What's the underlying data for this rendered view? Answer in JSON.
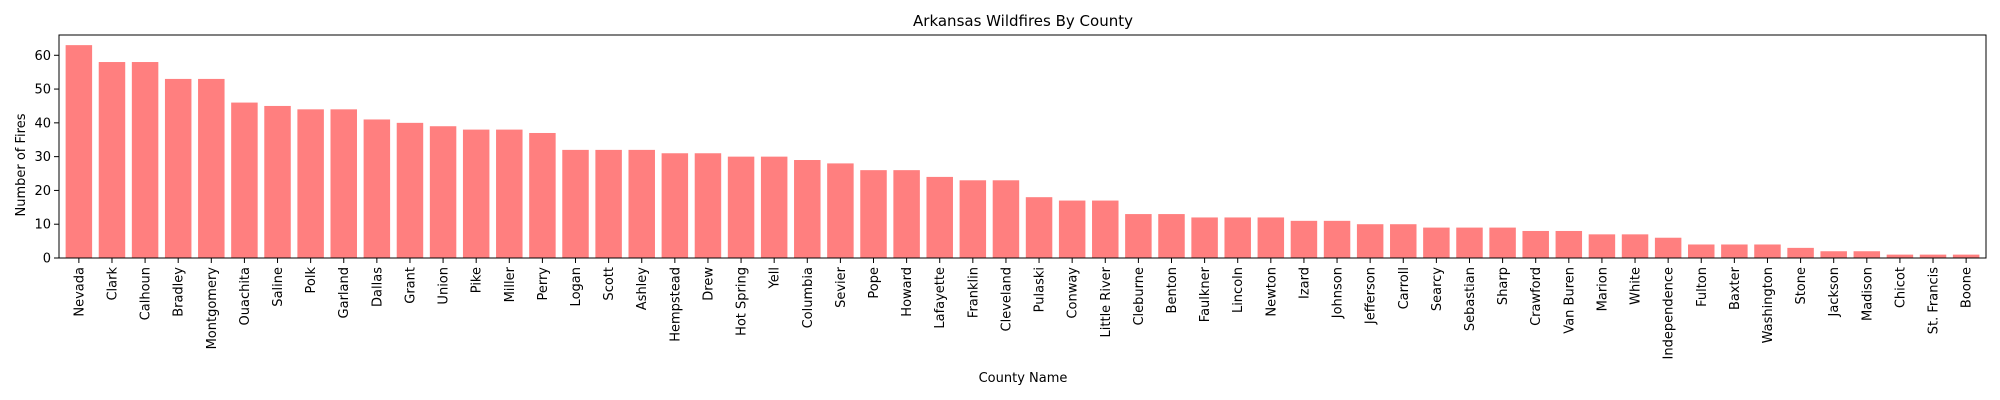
{
  "chart_data": {
    "type": "bar",
    "title": "Arkansas Wildfires By County",
    "xlabel": "County Name",
    "ylabel": "Number of Fires",
    "ylim": [
      0,
      66
    ],
    "yticks": [
      0,
      10,
      20,
      30,
      40,
      50,
      60
    ],
    "grid": false,
    "bar_color": "#ff7f7f",
    "categories": [
      "Nevada",
      "Clark",
      "Calhoun",
      "Bradley",
      "Montgomery",
      "Ouachita",
      "Saline",
      "Polk",
      "Garland",
      "Dallas",
      "Grant",
      "Union",
      "Pike",
      "Miller",
      "Perry",
      "Logan",
      "Scott",
      "Ashley",
      "Hempstead",
      "Drew",
      "Hot Spring",
      "Yell",
      "Columbia",
      "Sevier",
      "Pope",
      "Howard",
      "Lafayette",
      "Franklin",
      "Cleveland",
      "Pulaski",
      "Conway",
      "Little River",
      "Cleburne",
      "Benton",
      "Faulkner",
      "Lincoln",
      "Newton",
      "Izard",
      "Johnson",
      "Jefferson",
      "Carroll",
      "Searcy",
      "Sebastian",
      "Sharp",
      "Crawford",
      "Van Buren",
      "Marion",
      "White",
      "Independence",
      "Fulton",
      "Baxter",
      "Washington",
      "Stone",
      "Jackson",
      "Madison",
      "Chicot",
      "St. Francis",
      "Boone"
    ],
    "values": [
      63,
      58,
      58,
      53,
      53,
      46,
      45,
      44,
      44,
      41,
      40,
      39,
      38,
      38,
      37,
      32,
      32,
      32,
      31,
      31,
      30,
      30,
      29,
      28,
      26,
      26,
      24,
      23,
      23,
      18,
      17,
      17,
      13,
      13,
      12,
      12,
      12,
      11,
      11,
      10,
      10,
      9,
      9,
      9,
      8,
      8,
      7,
      7,
      6,
      4,
      4,
      4,
      3,
      2,
      2,
      1,
      1,
      1
    ]
  }
}
